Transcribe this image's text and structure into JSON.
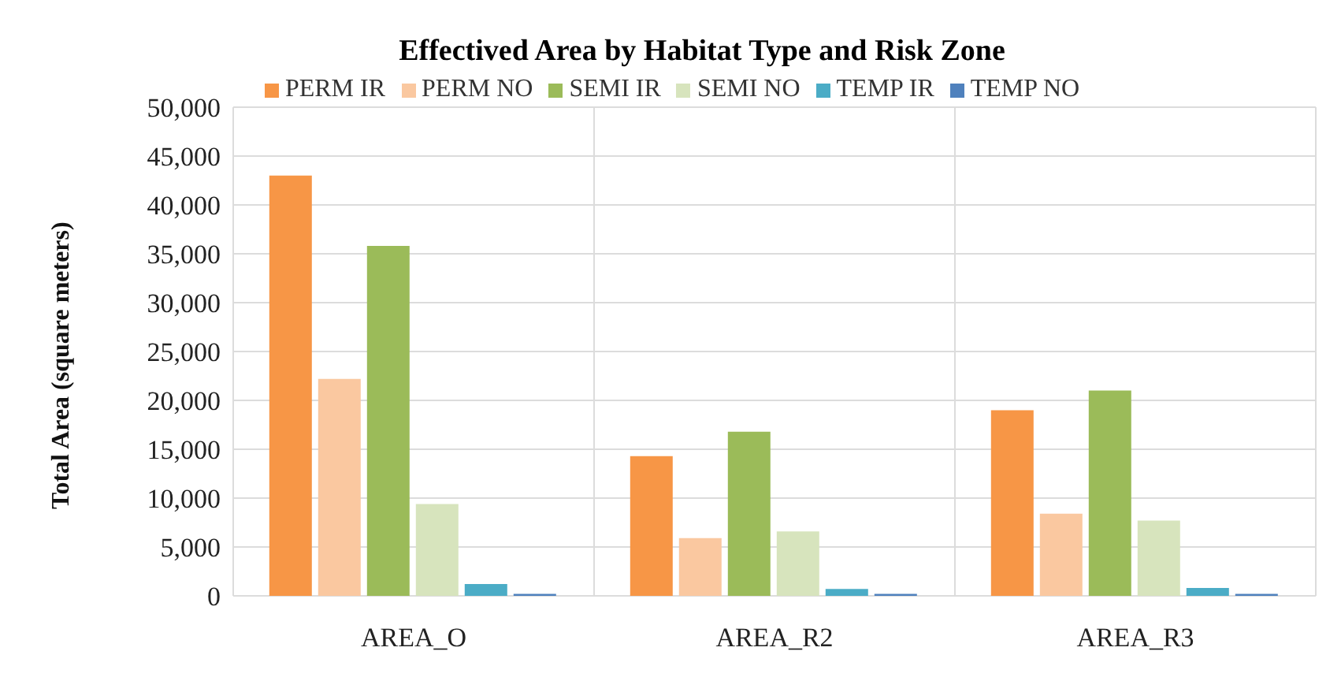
{
  "chart_data": {
    "type": "bar",
    "title": "Effectived Area by Habitat Type and Risk Zone",
    "ylabel": "Total Area (square meters)",
    "categories": [
      "AREA_O",
      "AREA_R2",
      "AREA_R3"
    ],
    "series": [
      {
        "name": "PERM IR",
        "color": "#f79646",
        "values": [
          43000,
          14300,
          19000
        ]
      },
      {
        "name": "PERM NO",
        "color": "#fac8a0",
        "values": [
          22200,
          5900,
          8400
        ]
      },
      {
        "name": "SEMI IR",
        "color": "#9bbb59",
        "values": [
          35800,
          16800,
          21000
        ]
      },
      {
        "name": "SEMI NO",
        "color": "#d7e4bd",
        "values": [
          9400,
          6600,
          7700
        ]
      },
      {
        "name": "TEMP IR",
        "color": "#4bacc6",
        "values": [
          1200,
          700,
          800
        ]
      },
      {
        "name": "TEMP NO",
        "color": "#4f81bd",
        "values": [
          200,
          200,
          200
        ]
      }
    ],
    "ylim": [
      0,
      50000
    ],
    "yticks": [
      {
        "value": 0,
        "label": "0"
      },
      {
        "value": 5000,
        "label": "5,000"
      },
      {
        "value": 10000,
        "label": "10,000"
      },
      {
        "value": 15000,
        "label": "15,000"
      },
      {
        "value": 20000,
        "label": "20,000"
      },
      {
        "value": 25000,
        "label": "25,000"
      },
      {
        "value": 30000,
        "label": "30,000"
      },
      {
        "value": 35000,
        "label": "35,000"
      },
      {
        "value": 40000,
        "label": "40,000"
      },
      {
        "value": 45000,
        "label": "45,000"
      },
      {
        "value": 50000,
        "label": "50,000"
      }
    ],
    "grid": true,
    "legend": "top"
  }
}
